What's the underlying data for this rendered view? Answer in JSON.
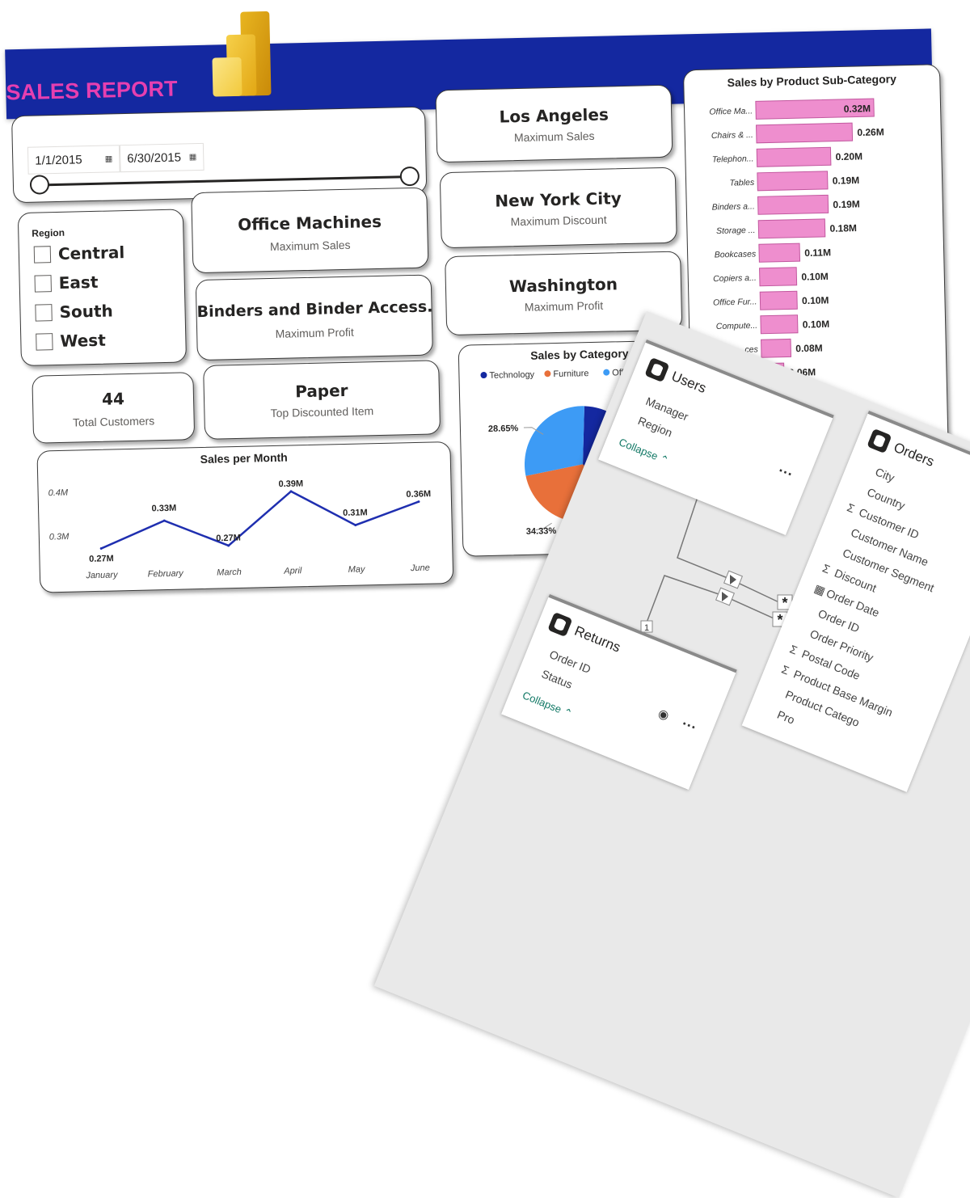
{
  "report": {
    "title": "SALES REPORT",
    "colors": {
      "banner": "#1428a0",
      "title": "#e63fb0",
      "bar": "#ee8ece",
      "line": "#1f2fb0"
    },
    "date_slicer": {
      "start": "1/1/2015",
      "end": "6/30/2015",
      "calendar_icon": "calendar-icon"
    },
    "region_slicer": {
      "title": "Region",
      "options": [
        {
          "label": "Central",
          "checked": false
        },
        {
          "label": "East",
          "checked": false
        },
        {
          "label": "South",
          "checked": false
        },
        {
          "label": "West",
          "checked": false
        }
      ]
    },
    "kpis": {
      "office_machines": {
        "value": "Office Machines",
        "label": "Maximum Sales"
      },
      "binders": {
        "value": "Binders and Binder Access...",
        "label": "Maximum Profit"
      },
      "paper": {
        "value": "Paper",
        "label": "Top Discounted Item"
      },
      "customers": {
        "value": "44",
        "label": "Total Customers"
      },
      "los_angeles": {
        "value": "Los Angeles",
        "label": "Maximum Sales"
      },
      "new_york": {
        "value": "New York City",
        "label": "Maximum Discount"
      },
      "washington": {
        "value": "Washington",
        "label": "Maximum Profit"
      }
    }
  },
  "chart_data": [
    {
      "type": "line",
      "title": "Sales per Month",
      "categories": [
        "January",
        "February",
        "March",
        "April",
        "May",
        "June"
      ],
      "values": [
        0.27,
        0.33,
        0.27,
        0.39,
        0.31,
        0.36
      ],
      "data_labels": [
        "0.27M",
        "0.33M",
        "0.27M",
        "0.39M",
        "0.31M",
        "0.36M"
      ],
      "yticks": [
        "0.4M",
        "0.3M"
      ],
      "ytick_values": [
        0.4,
        0.3
      ],
      "ylim": [
        0.24,
        0.42
      ]
    },
    {
      "type": "bar",
      "orientation": "horizontal",
      "title": "Sales by Product Sub-Category",
      "categories": [
        "Office Ma...",
        "Chairs & ...",
        "Telephon...",
        "Tables",
        "Binders a...",
        "Storage ...",
        "Bookcases",
        "Copiers a...",
        "Office Fur...",
        "Compute...",
        "...ces",
        "..."
      ],
      "values": [
        0.32,
        0.26,
        0.2,
        0.19,
        0.19,
        0.18,
        0.11,
        0.1,
        0.1,
        0.1,
        0.08,
        0.06
      ],
      "data_labels": [
        "0.32M",
        "0.26M",
        "0.20M",
        "0.19M",
        "0.19M",
        "0.18M",
        "0.11M",
        "0.10M",
        "0.10M",
        "0.10M",
        "0.08M",
        "0.06M"
      ]
    },
    {
      "type": "pie",
      "title": "Sales by Category",
      "legend": [
        {
          "name": "Technology",
          "color": "#1428a0"
        },
        {
          "name": "Furniture",
          "color": "#e8703a"
        },
        {
          "name": "Office Su",
          "color": "#3d9bf5"
        }
      ],
      "slices": [
        {
          "name": "Technology",
          "value": 37.02,
          "color": "#1428a0"
        },
        {
          "name": "Furniture",
          "value": 34.33,
          "color": "#e8703a"
        },
        {
          "name": "Office Su",
          "value": 28.65,
          "color": "#3d9bf5"
        }
      ],
      "data_labels": [
        "28.65%",
        "34.33%"
      ]
    }
  ],
  "model_view": {
    "tables": {
      "users": {
        "name": "Users",
        "fields": [
          "Manager",
          "Region"
        ],
        "collapse": "Collapse",
        "more": "···"
      },
      "orders": {
        "name": "Orders",
        "fields": [
          {
            "name": "City",
            "icon": ""
          },
          {
            "name": "Country",
            "icon": ""
          },
          {
            "name": "Customer ID",
            "icon": "Σ"
          },
          {
            "name": "Customer Name",
            "icon": ""
          },
          {
            "name": "Customer Segment",
            "icon": ""
          },
          {
            "name": "Discount",
            "icon": "Σ"
          },
          {
            "name": "Order Date",
            "icon": "calendar"
          },
          {
            "name": "Order ID",
            "icon": ""
          },
          {
            "name": "Order Priority",
            "icon": ""
          },
          {
            "name": "Postal Code",
            "icon": "Σ"
          },
          {
            "name": "Product Base Margin",
            "icon": "Σ"
          },
          {
            "name": "Product Catego",
            "icon": ""
          },
          {
            "name": "Pro",
            "icon": ""
          }
        ]
      },
      "returns": {
        "name": "Returns",
        "fields": [
          "Order ID",
          "Status"
        ],
        "collapse": "Collapse",
        "more": "···"
      }
    },
    "relationships": [
      {
        "from": "Users",
        "to": "Orders",
        "from_card": "1",
        "to_card": "*"
      },
      {
        "from": "Returns",
        "to": "Orders",
        "from_card": "1",
        "to_card": "*"
      }
    ]
  }
}
